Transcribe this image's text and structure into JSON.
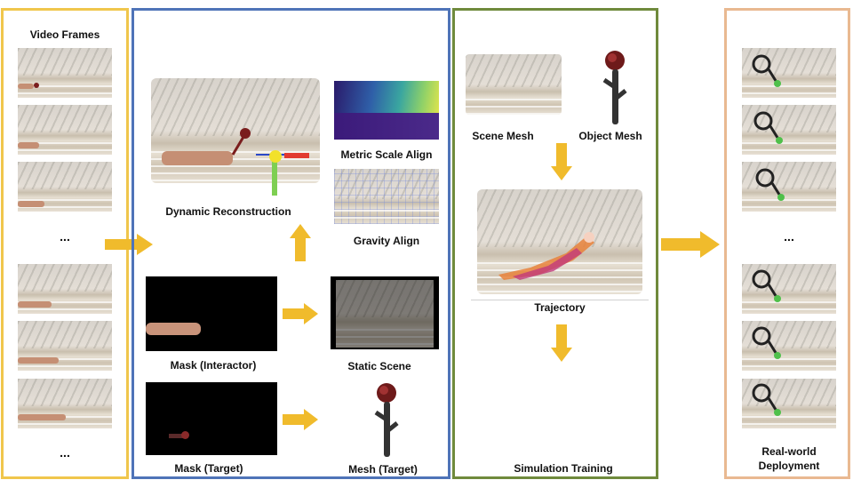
{
  "colors": {
    "frames_border": "#f0c64c",
    "recon_border": "#4f74b8",
    "sim_border": "#6f8a3c",
    "real_border": "#e9b991",
    "arrow": "#f0bb2c"
  },
  "frames": {
    "title": "Video Frames",
    "ellipsis_top": "...",
    "ellipsis_bottom": "..."
  },
  "recon": {
    "dynamic_reconstruction": "Dynamic Reconstruction",
    "metric_scale_align": "Metric Scale Align",
    "gravity_align": "Gravity Align",
    "mask_interactor": "Mask (Interactor)",
    "static_scene": "Static Scene",
    "mask_target": "Mask (Target)",
    "mesh_target": "Mesh (Target)"
  },
  "sim": {
    "scene_mesh": "Scene Mesh",
    "object_mesh": "Object Mesh",
    "trajectory": "Trajectory",
    "simulation_training": "Simulation Training"
  },
  "real": {
    "ellipsis": "...",
    "deployment_line1": "Real-world",
    "deployment_line2": "Deployment"
  }
}
